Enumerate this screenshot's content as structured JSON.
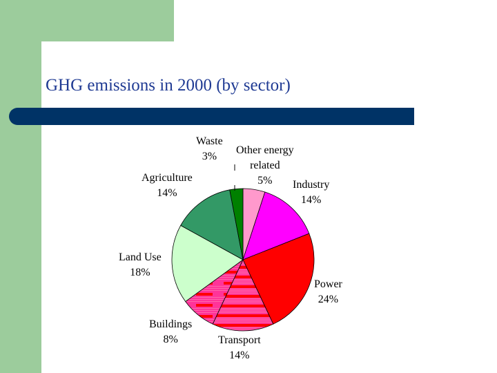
{
  "slide": {
    "title": "GHG emissions in 2000 (by sector)",
    "colors": {
      "green_frame": "#9ccc9c",
      "title_text": "#1f3a93",
      "bar": "#003366"
    }
  },
  "chart_data": {
    "type": "pie",
    "title": "GHG emissions in 2000 (by sector)",
    "start_angle_deg": 0,
    "direction": "clockwise",
    "slices": [
      {
        "label": "Other energy related",
        "value": 5,
        "display": "5%",
        "color": "#ff99cc",
        "pattern": "none"
      },
      {
        "label": "Industry",
        "value": 14,
        "display": "14%",
        "color": "#ff00ff",
        "pattern": "none"
      },
      {
        "label": "Power",
        "value": 24,
        "display": "24%",
        "color": "#ff0000",
        "pattern": "none"
      },
      {
        "label": "Transport",
        "value": 14,
        "display": "14%",
        "color": "#ff3399",
        "pattern": "horizontal-stripes-red"
      },
      {
        "label": "Buildings",
        "value": 8,
        "display": "8%",
        "color": "#ff3399",
        "pattern": "dashed-red"
      },
      {
        "label": "Land Use",
        "value": 18,
        "display": "18%",
        "color": "#ccffcc",
        "pattern": "none"
      },
      {
        "label": "Agriculture",
        "value": 14,
        "display": "14%",
        "color": "#339966",
        "pattern": "none"
      },
      {
        "label": "Waste",
        "value": 3,
        "display": "3%",
        "color": "#008000",
        "pattern": "none"
      }
    ],
    "labels": {
      "waste": [
        "Waste",
        "3%"
      ],
      "other_energy": [
        "Other energy",
        "related",
        "5%"
      ],
      "industry": [
        "Industry",
        "14%"
      ],
      "agriculture": [
        "Agriculture",
        "14%"
      ],
      "land_use": [
        "Land Use",
        "18%"
      ],
      "power": [
        "Power",
        "24%"
      ],
      "buildings": [
        "Buildings",
        "8%"
      ],
      "transport": [
        "Transport",
        "14%"
      ]
    }
  }
}
